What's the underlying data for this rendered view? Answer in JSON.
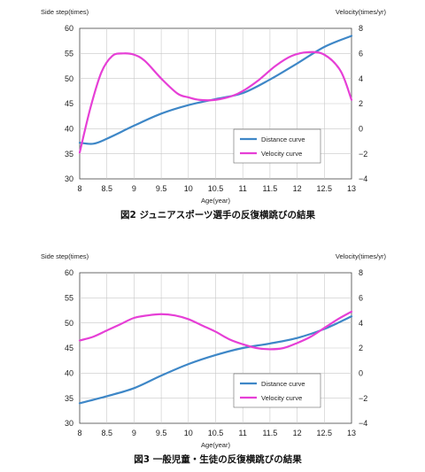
{
  "chart_data": [
    {
      "type": "line",
      "caption": "図2 ジュニアスポーツ選手の反復横跳びの結果",
      "xlabel": "Age(year)",
      "ylabel": "Side step(times)",
      "y2label": "Velocity(times/yr)",
      "xlim": [
        8,
        13
      ],
      "ylim": [
        30,
        60
      ],
      "y2lim": [
        -4,
        8
      ],
      "x_ticks": [
        "8",
        "8.5",
        "9",
        "9.5",
        "10",
        "10.5",
        "11",
        "11.5",
        "12",
        "12.5",
        "13"
      ],
      "y_ticks": [
        "30",
        "35",
        "40",
        "45",
        "50",
        "55",
        "60"
      ],
      "y2_ticks": [
        "-4",
        "-2",
        "0",
        "2",
        "4",
        "6",
        "8"
      ],
      "grid": true,
      "legend": "inside-center-right",
      "series": [
        {
          "name": "Distance curve",
          "axis": "left",
          "color": "#3e87c7",
          "x": [
            8.0,
            8.25,
            8.5,
            9.0,
            9.5,
            10.0,
            10.5,
            11.0,
            11.5,
            12.0,
            12.5,
            13.0
          ],
          "y": [
            37.2,
            37.0,
            38.0,
            40.6,
            43.0,
            44.7,
            45.9,
            47.1,
            49.8,
            53.0,
            56.3,
            58.5
          ]
        },
        {
          "name": "Velocity curve",
          "axis": "right",
          "color": "#e63fd6",
          "x": [
            8.0,
            8.2,
            8.4,
            8.6,
            8.8,
            9.0,
            9.2,
            9.5,
            9.8,
            10.0,
            10.2,
            10.5,
            10.8,
            11.0,
            11.3,
            11.6,
            11.9,
            12.2,
            12.5,
            12.8,
            13.0
          ],
          "y": [
            -1.9,
            1.7,
            4.5,
            5.8,
            6.0,
            5.9,
            5.4,
            4.0,
            2.8,
            2.5,
            2.3,
            2.3,
            2.6,
            3.0,
            3.9,
            5.0,
            5.8,
            6.1,
            5.9,
            4.6,
            2.3
          ]
        }
      ]
    },
    {
      "type": "line",
      "caption": "図3 一般児童・生徒の反復横跳びの結果",
      "xlabel": "Age(year)",
      "ylabel": "Side step(times)",
      "y2label": "Velocity(times/yr)",
      "xlim": [
        8,
        13
      ],
      "ylim": [
        30,
        60
      ],
      "y2lim": [
        -4,
        8
      ],
      "x_ticks": [
        "8",
        "8.5",
        "9",
        "9.5",
        "10",
        "10.5",
        "11",
        "11.5",
        "12",
        "12.5",
        "13"
      ],
      "y_ticks": [
        "30",
        "35",
        "40",
        "45",
        "50",
        "55",
        "60"
      ],
      "y2_ticks": [
        "-4",
        "-2",
        "0",
        "2",
        "4",
        "6",
        "8"
      ],
      "grid": true,
      "legend": "inside-center-right",
      "series": [
        {
          "name": "Distance curve",
          "axis": "left",
          "color": "#3e87c7",
          "x": [
            8.0,
            8.5,
            9.0,
            9.5,
            10.0,
            10.5,
            11.0,
            11.5,
            12.0,
            12.5,
            13.0
          ],
          "y": [
            34.0,
            35.4,
            37.0,
            39.5,
            41.8,
            43.6,
            45.0,
            45.9,
            47.0,
            48.8,
            51.3
          ]
        },
        {
          "name": "Velocity curve",
          "axis": "right",
          "color": "#e63fd6",
          "x": [
            8.0,
            8.25,
            8.5,
            8.75,
            9.0,
            9.25,
            9.5,
            9.75,
            10.0,
            10.25,
            10.5,
            10.75,
            11.0,
            11.25,
            11.5,
            11.75,
            12.0,
            12.25,
            12.5,
            12.75,
            13.0
          ],
          "y": [
            2.6,
            2.9,
            3.4,
            3.9,
            4.4,
            4.6,
            4.7,
            4.6,
            4.3,
            3.8,
            3.3,
            2.7,
            2.3,
            2.0,
            1.9,
            2.0,
            2.4,
            2.9,
            3.6,
            4.3,
            4.9
          ]
        }
      ]
    }
  ]
}
